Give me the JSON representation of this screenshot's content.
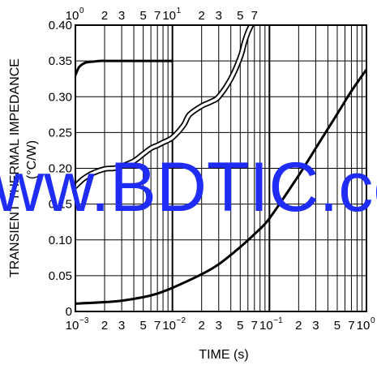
{
  "chart_data": {
    "type": "line",
    "xscale": "log",
    "xlim": [
      0.001,
      1
    ],
    "ylim": [
      0,
      0.4
    ],
    "grid": true,
    "xlabel": "TIME (s)",
    "ylabel": "TRANSIENT THERMAL IMPEDANCE",
    "ylabel_unit": "(°C/W)",
    "yticks": [
      "0",
      "0.05",
      "0.10",
      "0.15",
      "0.20",
      "0.25",
      "0.30",
      "0.35",
      "0.40"
    ],
    "bottom_axis_labels": [
      {
        "text": "10",
        "sup": "−3",
        "x": 0.001
      },
      {
        "text": "2",
        "x": 0.002
      },
      {
        "text": "3",
        "x": 0.003
      },
      {
        "text": "5",
        "x": 0.005
      },
      {
        "text": "7",
        "x": 0.007
      },
      {
        "text": "10",
        "sup": "−2",
        "x": 0.01
      },
      {
        "text": "2",
        "x": 0.02
      },
      {
        "text": "3",
        "x": 0.03
      },
      {
        "text": "5",
        "x": 0.05
      },
      {
        "text": "7",
        "x": 0.07
      },
      {
        "text": "10",
        "sup": "−1",
        "x": 0.1
      },
      {
        "text": "2",
        "x": 0.2
      },
      {
        "text": "3",
        "x": 0.3
      },
      {
        "text": "5",
        "x": 0.5
      },
      {
        "text": "7",
        "x": 0.7
      },
      {
        "text": "10",
        "sup": "0",
        "x": 1
      }
    ],
    "top_axis_labels": [
      {
        "text": "10",
        "sup": "0",
        "x": 0.001
      },
      {
        "text": "2",
        "x": 0.002
      },
      {
        "text": "3",
        "x": 0.003
      },
      {
        "text": "5",
        "x": 0.005
      },
      {
        "text": "7",
        "x": 0.007
      },
      {
        "text": "10",
        "sup": "1",
        "x": 0.01
      },
      {
        "text": "2",
        "x": 0.02
      },
      {
        "text": "3",
        "x": 0.03
      },
      {
        "text": "5",
        "x": 0.05
      },
      {
        "text": "7",
        "x": 0.07
      }
    ],
    "series": [
      {
        "style": "single",
        "axis": "top",
        "x": [
          0.001,
          0.00105,
          0.0011,
          0.0012,
          0.0013,
          0.0015,
          0.0018,
          0.0022,
          0.003,
          0.005,
          0.008,
          0.01
        ],
        "y": [
          0.33,
          0.337,
          0.342,
          0.346,
          0.348,
          0.349,
          0.35,
          0.35,
          0.35,
          0.35,
          0.35,
          0.35
        ]
      },
      {
        "style": "double",
        "axis": "top",
        "x": [
          0.001,
          0.0012,
          0.0015,
          0.002,
          0.0025,
          0.003,
          0.004,
          0.005,
          0.006,
          0.007,
          0.008,
          0.01,
          0.013,
          0.015,
          0.02,
          0.025,
          0.03,
          0.04,
          0.05,
          0.055,
          0.06,
          0.065
        ],
        "y": [
          0.175,
          0.185,
          0.193,
          0.199,
          0.2,
          0.203,
          0.21,
          0.22,
          0.228,
          0.232,
          0.236,
          0.243,
          0.26,
          0.275,
          0.287,
          0.293,
          0.3,
          0.325,
          0.355,
          0.375,
          0.39,
          0.4
        ]
      },
      {
        "style": "single",
        "axis": "bottom",
        "x": [
          0.001,
          0.002,
          0.003,
          0.005,
          0.007,
          0.01,
          0.02,
          0.03,
          0.05,
          0.07,
          0.1,
          0.2,
          0.3,
          0.5,
          0.7,
          1.0
        ],
        "y": [
          0.011,
          0.013,
          0.015,
          0.02,
          0.025,
          0.033,
          0.052,
          0.066,
          0.09,
          0.108,
          0.13,
          0.19,
          0.228,
          0.276,
          0.308,
          0.338
        ]
      }
    ]
  },
  "watermark": "www.BDTIC.com"
}
